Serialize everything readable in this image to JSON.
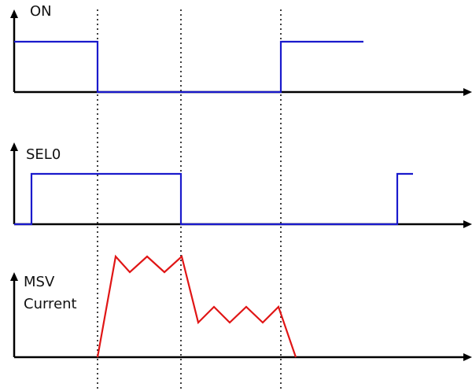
{
  "signals": [
    {
      "id": "on",
      "label_lines": [
        "ON"
      ],
      "color": "#1a1acc",
      "kind": "digital",
      "levels": [
        "high",
        "low",
        "high"
      ]
    },
    {
      "id": "sel0",
      "label_lines": [
        "SEL0"
      ],
      "color": "#1a1acc",
      "kind": "digital",
      "levels": [
        "low",
        "high",
        "low",
        "high"
      ]
    },
    {
      "id": "msv",
      "label_lines": [
        "MSV",
        "Current"
      ],
      "color": "#e01515",
      "kind": "analog",
      "shape": "zigzag"
    }
  ],
  "colors": {
    "axis": "#000000",
    "guide": "#000000"
  }
}
